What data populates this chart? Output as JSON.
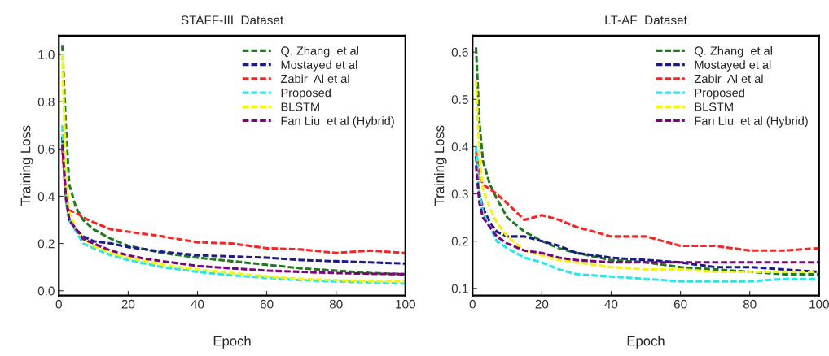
{
  "chart_data": [
    {
      "type": "line",
      "title": "STAFF-III  Dataset",
      "xlabel": "Epoch",
      "ylabel": "Training Loss",
      "legend": "top right",
      "line_style": "dashed",
      "grid": false,
      "x": [
        1,
        2,
        3,
        5,
        7,
        10,
        15,
        20,
        25,
        30,
        40,
        50,
        60,
        70,
        80,
        90,
        100
      ],
      "xlim": [
        0,
        100
      ],
      "ylim": [
        -0.02,
        1.08
      ],
      "xticks": [
        0,
        20,
        40,
        60,
        80,
        100
      ],
      "yticks": [
        {
          "value": 0,
          "label": "0.0"
        },
        {
          "value": 0.2,
          "label": "0.2"
        },
        {
          "value": 0.4,
          "label": "0.4"
        },
        {
          "value": 0.6,
          "label": "0.6"
        },
        {
          "value": 0.8,
          "label": "0.8"
        },
        {
          "value": 1,
          "label": "1.0"
        }
      ],
      "series": [
        {
          "name": "Q. Zhang  et al",
          "color": "#1e7b1e",
          "values": [
            1.04,
            0.7,
            0.45,
            0.35,
            0.3,
            0.26,
            0.22,
            0.19,
            0.175,
            0.16,
            0.14,
            0.125,
            0.11,
            0.095,
            0.085,
            0.075,
            0.07
          ]
        },
        {
          "name": "Mostayed et al",
          "color": "#1a1a8c",
          "values": [
            0.65,
            0.4,
            0.3,
            0.26,
            0.23,
            0.21,
            0.2,
            0.185,
            0.175,
            0.165,
            0.15,
            0.145,
            0.14,
            0.13,
            0.125,
            0.12,
            0.115
          ]
        },
        {
          "name": "Zabir  Al et al",
          "color": "#ff2020",
          "values": [
            0.6,
            0.4,
            0.34,
            0.33,
            0.31,
            0.29,
            0.26,
            0.25,
            0.24,
            0.23,
            0.205,
            0.2,
            0.18,
            0.175,
            0.16,
            0.17,
            0.16
          ]
        },
        {
          "name": "Proposed",
          "color": "#20e8f0",
          "values": [
            0.7,
            0.38,
            0.3,
            0.25,
            0.2,
            0.18,
            0.15,
            0.13,
            0.115,
            0.1,
            0.08,
            0.065,
            0.055,
            0.045,
            0.04,
            0.035,
            0.03
          ]
        },
        {
          "name": "BLSTM",
          "color": "#f5f500",
          "values": [
            1.0,
            0.5,
            0.33,
            0.26,
            0.22,
            0.19,
            0.16,
            0.14,
            0.125,
            0.11,
            0.09,
            0.075,
            0.06,
            0.05,
            0.045,
            0.04,
            0.04
          ]
        },
        {
          "name": "Fan Liu  et al (Hybrid)",
          "color": "#800080",
          "values": [
            0.62,
            0.4,
            0.3,
            0.26,
            0.22,
            0.2,
            0.17,
            0.15,
            0.135,
            0.125,
            0.105,
            0.095,
            0.085,
            0.08,
            0.075,
            0.072,
            0.07
          ]
        }
      ]
    },
    {
      "type": "line",
      "title": "LT-AF  Dataset",
      "xlabel": "Epoch",
      "ylabel": "Training Loss",
      "legend": "top right",
      "line_style": "dashed",
      "grid": false,
      "x": [
        1,
        2,
        3,
        5,
        7,
        10,
        15,
        20,
        25,
        30,
        40,
        50,
        60,
        70,
        80,
        90,
        100
      ],
      "xlim": [
        0,
        100
      ],
      "ylim": [
        0.085,
        0.635
      ],
      "xticks": [
        0,
        20,
        40,
        60,
        80,
        100
      ],
      "yticks": [
        0.1,
        0.2,
        0.3,
        0.4,
        0.5,
        0.6
      ],
      "series": [
        {
          "name": "Q. Zhang  et al",
          "color": "#1e7b1e",
          "values": [
            0.61,
            0.45,
            0.37,
            0.32,
            0.29,
            0.25,
            0.22,
            0.2,
            0.185,
            0.175,
            0.16,
            0.155,
            0.145,
            0.14,
            0.135,
            0.13,
            0.13
          ]
        },
        {
          "name": "Mostayed et al",
          "color": "#1a1a8c",
          "values": [
            0.38,
            0.3,
            0.27,
            0.24,
            0.22,
            0.21,
            0.21,
            0.2,
            0.19,
            0.175,
            0.165,
            0.16,
            0.155,
            0.145,
            0.145,
            0.14,
            0.135
          ]
        },
        {
          "name": "Zabir  Al et al",
          "color": "#ff2020",
          "values": [
            0.39,
            0.34,
            0.32,
            0.31,
            0.3,
            0.28,
            0.245,
            0.255,
            0.245,
            0.23,
            0.21,
            0.21,
            0.19,
            0.19,
            0.18,
            0.18,
            0.185
          ]
        },
        {
          "name": "Proposed",
          "color": "#20e8f0",
          "values": [
            0.4,
            0.3,
            0.26,
            0.23,
            0.2,
            0.185,
            0.165,
            0.155,
            0.14,
            0.13,
            0.125,
            0.12,
            0.115,
            0.115,
            0.115,
            0.12,
            0.12
          ]
        },
        {
          "name": "BLSTM",
          "color": "#f5f500",
          "values": [
            0.54,
            0.38,
            0.31,
            0.27,
            0.24,
            0.21,
            0.18,
            0.17,
            0.16,
            0.155,
            0.145,
            0.14,
            0.14,
            0.135,
            0.135,
            0.135,
            0.135
          ]
        },
        {
          "name": "Fan Liu  et al (Hybrid)",
          "color": "#800080",
          "values": [
            0.36,
            0.28,
            0.25,
            0.23,
            0.21,
            0.195,
            0.18,
            0.175,
            0.165,
            0.16,
            0.155,
            0.155,
            0.155,
            0.155,
            0.155,
            0.155,
            0.155
          ]
        }
      ]
    }
  ]
}
